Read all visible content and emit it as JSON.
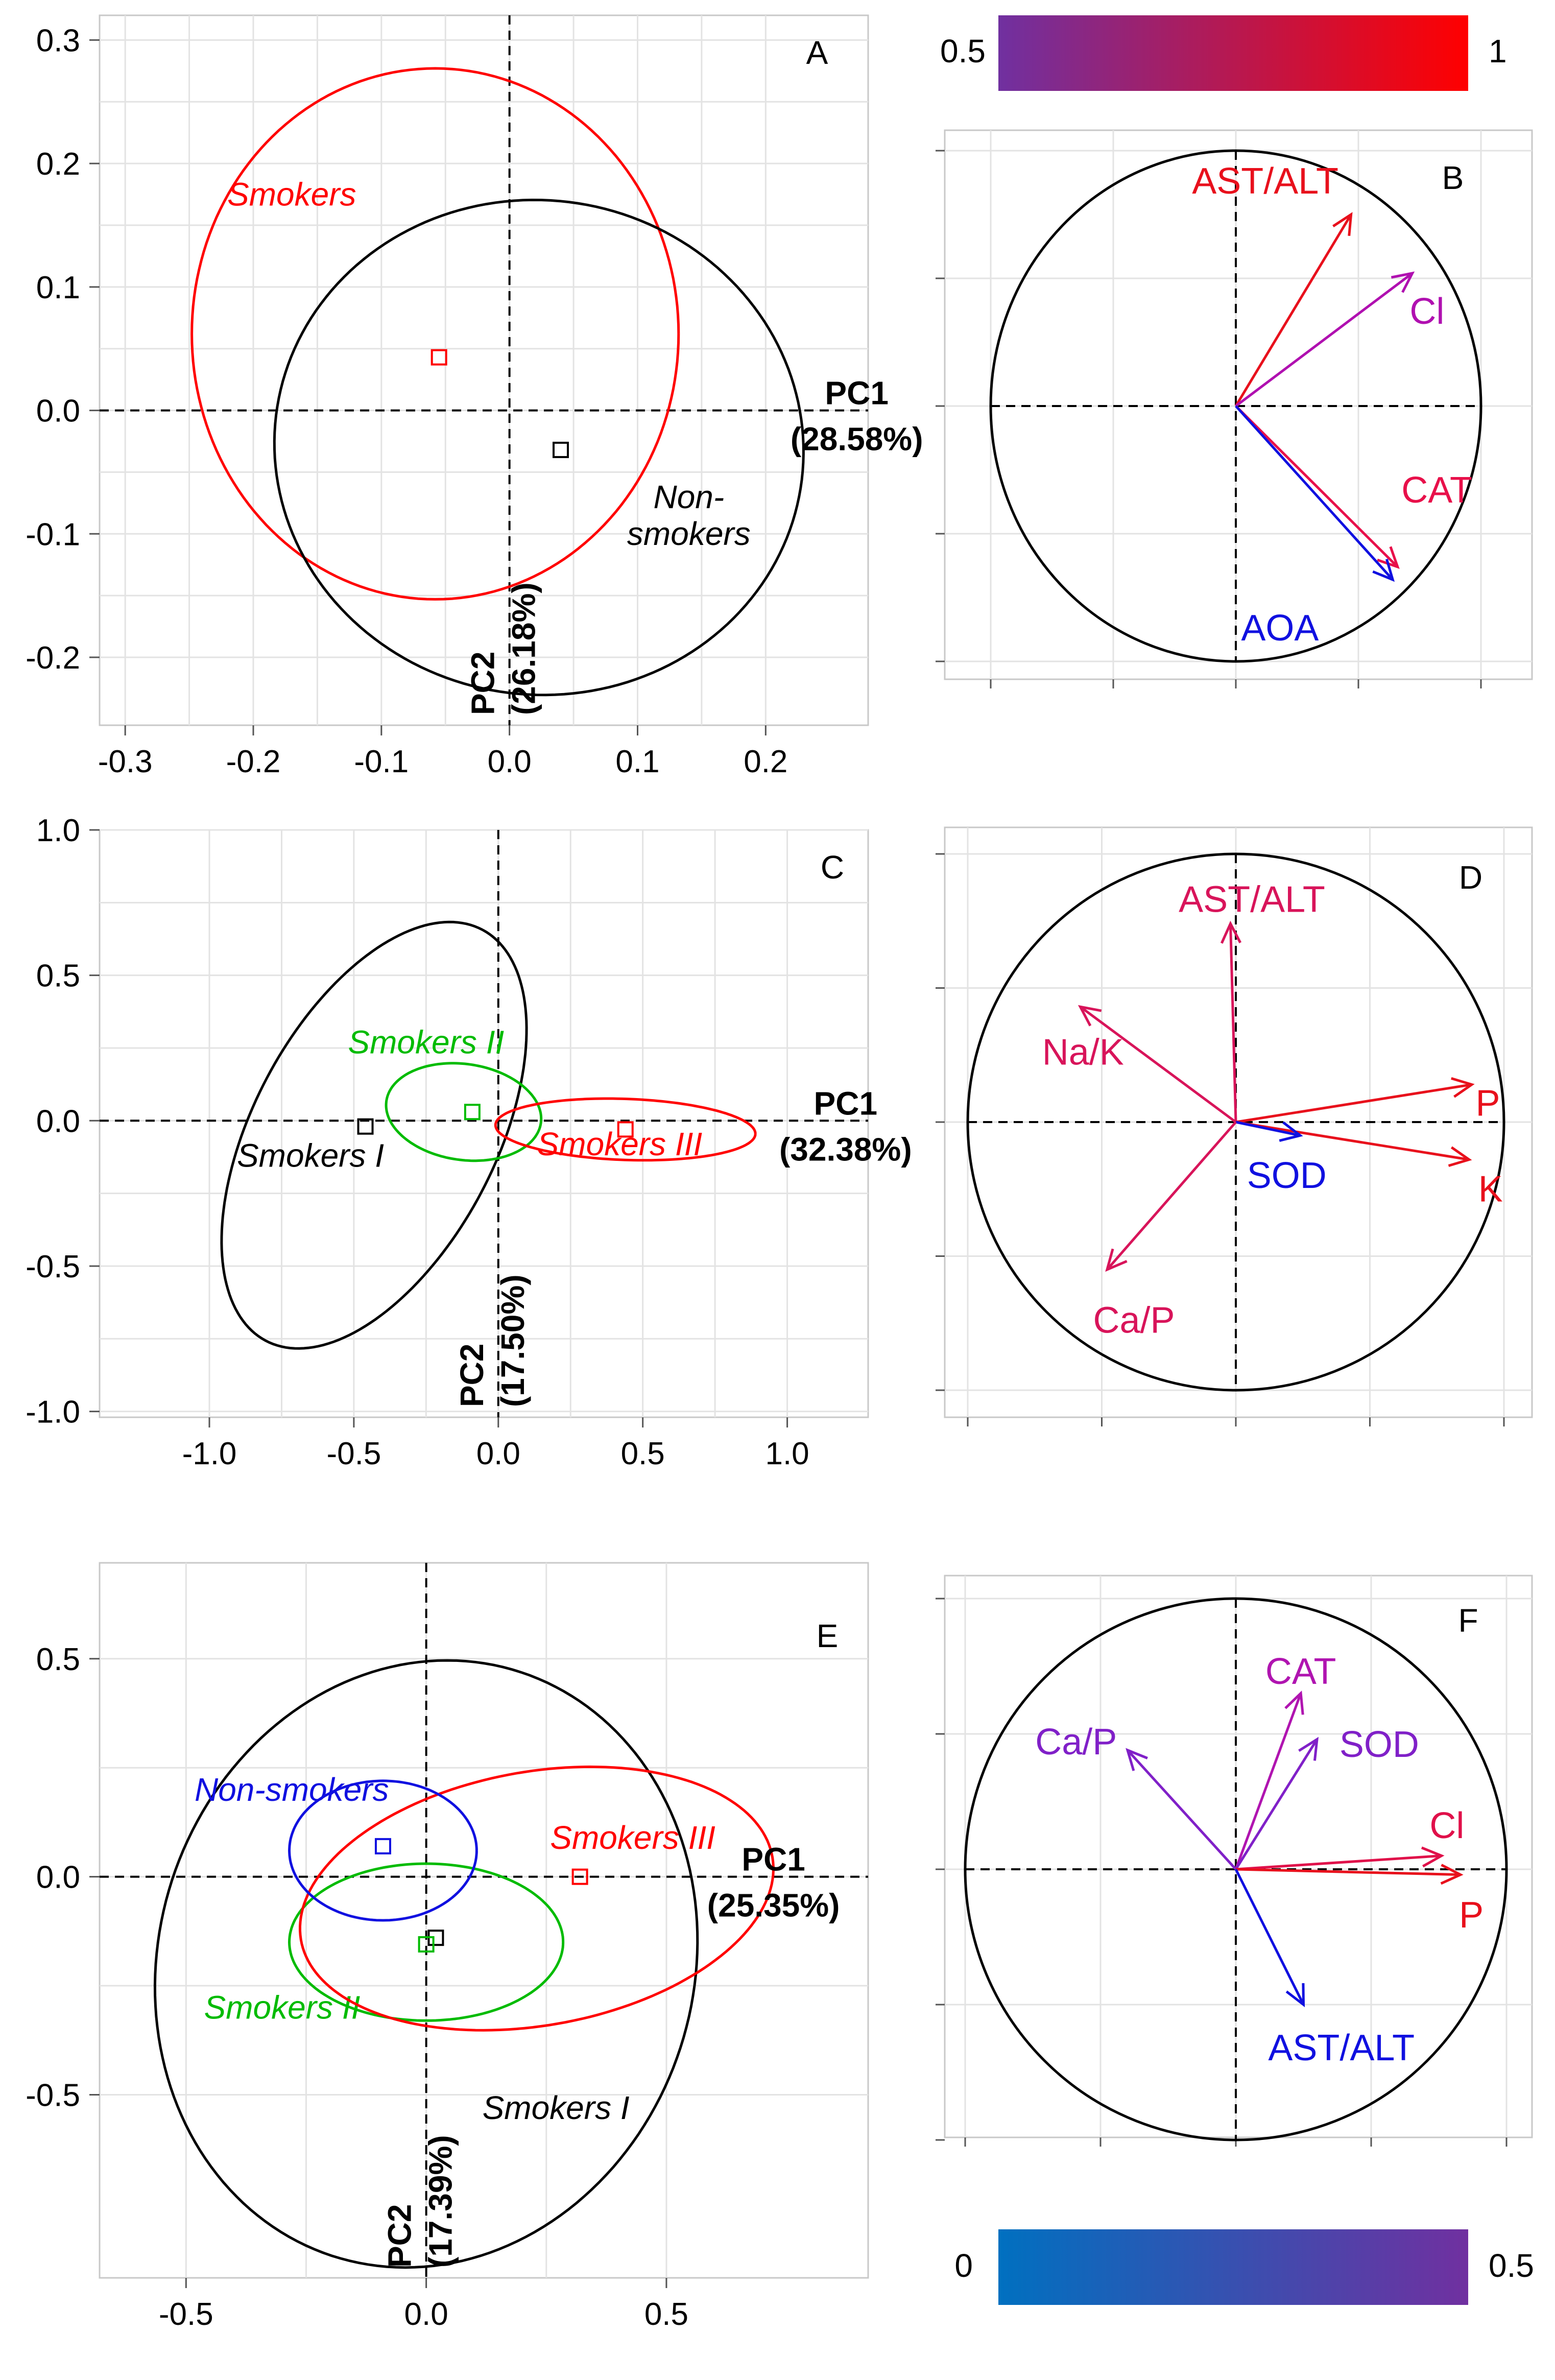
{
  "colorbars": {
    "top": {
      "min_label": "0.5",
      "max_label": "1",
      "colors": [
        "#7030A0",
        "#FF0000"
      ]
    },
    "bottom": {
      "min_label": "0",
      "max_label": "0.5",
      "colors": [
        "#0070C0",
        "#7030A0"
      ]
    }
  },
  "chart_data": [
    {
      "id": "A",
      "type": "scatter",
      "label": "A",
      "xlim": [
        -0.32,
        0.28
      ],
      "ylim": [
        -0.255,
        0.32
      ],
      "xticks": [
        -0.3,
        -0.2,
        -0.1,
        0.0,
        0.1,
        0.2
      ],
      "yticks": [
        -0.2,
        -0.1,
        0.0,
        0.1,
        0.2,
        0.3
      ],
      "tick_decimals": 1,
      "pc1": {
        "name": "PC1",
        "pct": "(28.58%)"
      },
      "pc2": {
        "name": "PC2",
        "pct": "(26.18%)"
      },
      "groups": [
        {
          "name": "Smokers",
          "color": "#FF0000",
          "centroid": [
            -0.055,
            0.043
          ],
          "ellipse": {
            "cx": -0.058,
            "cy": 0.062,
            "rx": 0.19,
            "ry": 0.215,
            "angle": 0
          },
          "label_at": [
            -0.17,
            0.175
          ]
        },
        {
          "name": "Non-smokers",
          "color": "#000000",
          "centroid": [
            0.04,
            -0.032
          ],
          "ellipse": {
            "cx": 0.023,
            "cy": -0.03,
            "rx": 0.207,
            "ry": 0.2,
            "angle": -15
          },
          "label_lines": [
            "Non-",
            "smokers"
          ],
          "label_at": [
            0.14,
            -0.085
          ]
        }
      ]
    },
    {
      "id": "B",
      "type": "loadings",
      "label": "B",
      "variables": [
        {
          "name": "AST/ALT",
          "x": 0.47,
          "y": 0.75,
          "color": "#E8101C",
          "label_at": [
            0.12,
            0.88
          ]
        },
        {
          "name": "Cl",
          "x": 0.72,
          "y": 0.52,
          "color": "#B010B0",
          "label_at": [
            0.78,
            0.37
          ]
        },
        {
          "name": "CAT",
          "x": 0.66,
          "y": -0.63,
          "color": "#E8104A",
          "label_at": [
            0.82,
            -0.33
          ]
        },
        {
          "name": "AOA",
          "x": 0.64,
          "y": -0.68,
          "color": "#1010E0",
          "label_at": [
            0.18,
            -0.87
          ]
        }
      ]
    },
    {
      "id": "C",
      "type": "scatter",
      "label": "C",
      "xlim": [
        -1.38,
        1.28
      ],
      "ylim": [
        -1.02,
        1.0
      ],
      "xticks": [
        -1.0,
        -0.5,
        0.0,
        0.5,
        1.0
      ],
      "yticks": [
        -1.0,
        -0.5,
        0.0,
        0.5,
        1.0
      ],
      "tick_decimals": 1,
      "pc1": {
        "name": "PC1",
        "pct": "(32.38%)"
      },
      "pc2": {
        "name": "PC2",
        "pct": "(17.50%)"
      },
      "groups": [
        {
          "name": "Smokers I",
          "color": "#000000",
          "centroid": [
            -0.46,
            -0.02
          ],
          "ellipse": {
            "cx": -0.43,
            "cy": -0.05,
            "rx": 0.8,
            "ry": 0.42,
            "angle": 62
          },
          "label_at": [
            -0.65,
            -0.12
          ]
        },
        {
          "name": "Smokers II",
          "color": "#00BB00",
          "centroid": [
            -0.09,
            0.03
          ],
          "ellipse": {
            "cx": -0.12,
            "cy": 0.03,
            "rx": 0.27,
            "ry": 0.165,
            "angle": -8
          },
          "label_at": [
            -0.25,
            0.27
          ]
        },
        {
          "name": "Smokers III",
          "color": "#FF0000",
          "centroid": [
            0.44,
            -0.03
          ],
          "ellipse": {
            "cx": 0.44,
            "cy": -0.03,
            "rx": 0.45,
            "ry": 0.105,
            "angle": -2
          },
          "label_at": [
            0.42,
            -0.08
          ]
        }
      ]
    },
    {
      "id": "D",
      "type": "loadings",
      "label": "D",
      "variables": [
        {
          "name": "AST/ALT",
          "x": -0.02,
          "y": 0.74,
          "color": "#D8145A",
          "label_at": [
            0.06,
            0.83
          ]
        },
        {
          "name": "Na/K",
          "x": -0.58,
          "y": 0.43,
          "color": "#D8145A",
          "label_at": [
            -0.57,
            0.26
          ]
        },
        {
          "name": "P",
          "x": 0.88,
          "y": 0.14,
          "color": "#E8101C",
          "label_at": [
            0.94,
            0.07
          ]
        },
        {
          "name": "K",
          "x": 0.87,
          "y": -0.14,
          "color": "#E8101C",
          "label_at": [
            0.95,
            -0.25
          ]
        },
        {
          "name": "SOD",
          "x": 0.24,
          "y": -0.05,
          "color": "#1010E0",
          "label_at": [
            0.19,
            -0.2
          ]
        },
        {
          "name": "Ca/P",
          "x": -0.48,
          "y": -0.55,
          "color": "#D8145A",
          "label_at": [
            -0.38,
            -0.74
          ]
        }
      ]
    },
    {
      "id": "E",
      "type": "scatter",
      "label": "E",
      "xlim": [
        -0.68,
        0.92
      ],
      "ylim": [
        -0.92,
        0.72
      ],
      "xticks": [
        -0.5,
        0.0,
        0.5
      ],
      "yticks": [
        -0.5,
        0.0,
        0.5
      ],
      "tick_decimals": 1,
      "pc1": {
        "name": "PC1",
        "pct": "(25.35%)"
      },
      "pc2": {
        "name": "PC2",
        "pct": "(17.39%)"
      },
      "groups": [
        {
          "name": "Smokers I",
          "color": "#000000",
          "centroid": [
            0.02,
            -0.14
          ],
          "ellipse": {
            "cx": 0.0,
            "cy": -0.2,
            "rx": 0.56,
            "ry": 0.7,
            "angle": -10
          },
          "label_at": [
            0.27,
            -0.53
          ]
        },
        {
          "name": "Smokers II",
          "color": "#00BB00",
          "centroid": [
            0.0,
            -0.155
          ],
          "ellipse": {
            "cx": 0.0,
            "cy": -0.15,
            "rx": 0.285,
            "ry": 0.18,
            "angle": 0
          },
          "label_at": [
            -0.3,
            -0.3
          ]
        },
        {
          "name": "Smokers III",
          "color": "#FF0000",
          "centroid": [
            0.32,
            0.0
          ],
          "ellipse": {
            "cx": 0.23,
            "cy": -0.05,
            "rx": 0.5,
            "ry": 0.29,
            "angle": 12
          },
          "label_at": [
            0.43,
            0.09
          ]
        },
        {
          "name": "Non-smokers",
          "color": "#1010E0",
          "centroid": [
            -0.09,
            0.07
          ],
          "ellipse": {
            "cx": -0.09,
            "cy": 0.06,
            "rx": 0.195,
            "ry": 0.16,
            "angle": 0
          },
          "label_at": [
            -0.28,
            0.2
          ]
        }
      ]
    },
    {
      "id": "F",
      "type": "loadings",
      "label": "F",
      "variables": [
        {
          "name": "CAT",
          "x": 0.24,
          "y": 0.65,
          "color": "#B014B0",
          "label_at": [
            0.24,
            0.73
          ]
        },
        {
          "name": "Ca/P",
          "x": -0.4,
          "y": 0.44,
          "color": "#8020C8",
          "label_at": [
            -0.59,
            0.47
          ]
        },
        {
          "name": "SOD",
          "x": 0.3,
          "y": 0.48,
          "color": "#8020C8",
          "label_at": [
            0.53,
            0.46
          ]
        },
        {
          "name": "Cl",
          "x": 0.76,
          "y": 0.05,
          "color": "#E0104A",
          "label_at": [
            0.78,
            0.16
          ]
        },
        {
          "name": "P",
          "x": 0.83,
          "y": -0.02,
          "color": "#E8101C",
          "label_at": [
            0.87,
            -0.17
          ]
        },
        {
          "name": "AST/ALT",
          "x": 0.25,
          "y": -0.5,
          "color": "#1010E0",
          "label_at": [
            0.39,
            -0.66
          ]
        }
      ]
    }
  ]
}
